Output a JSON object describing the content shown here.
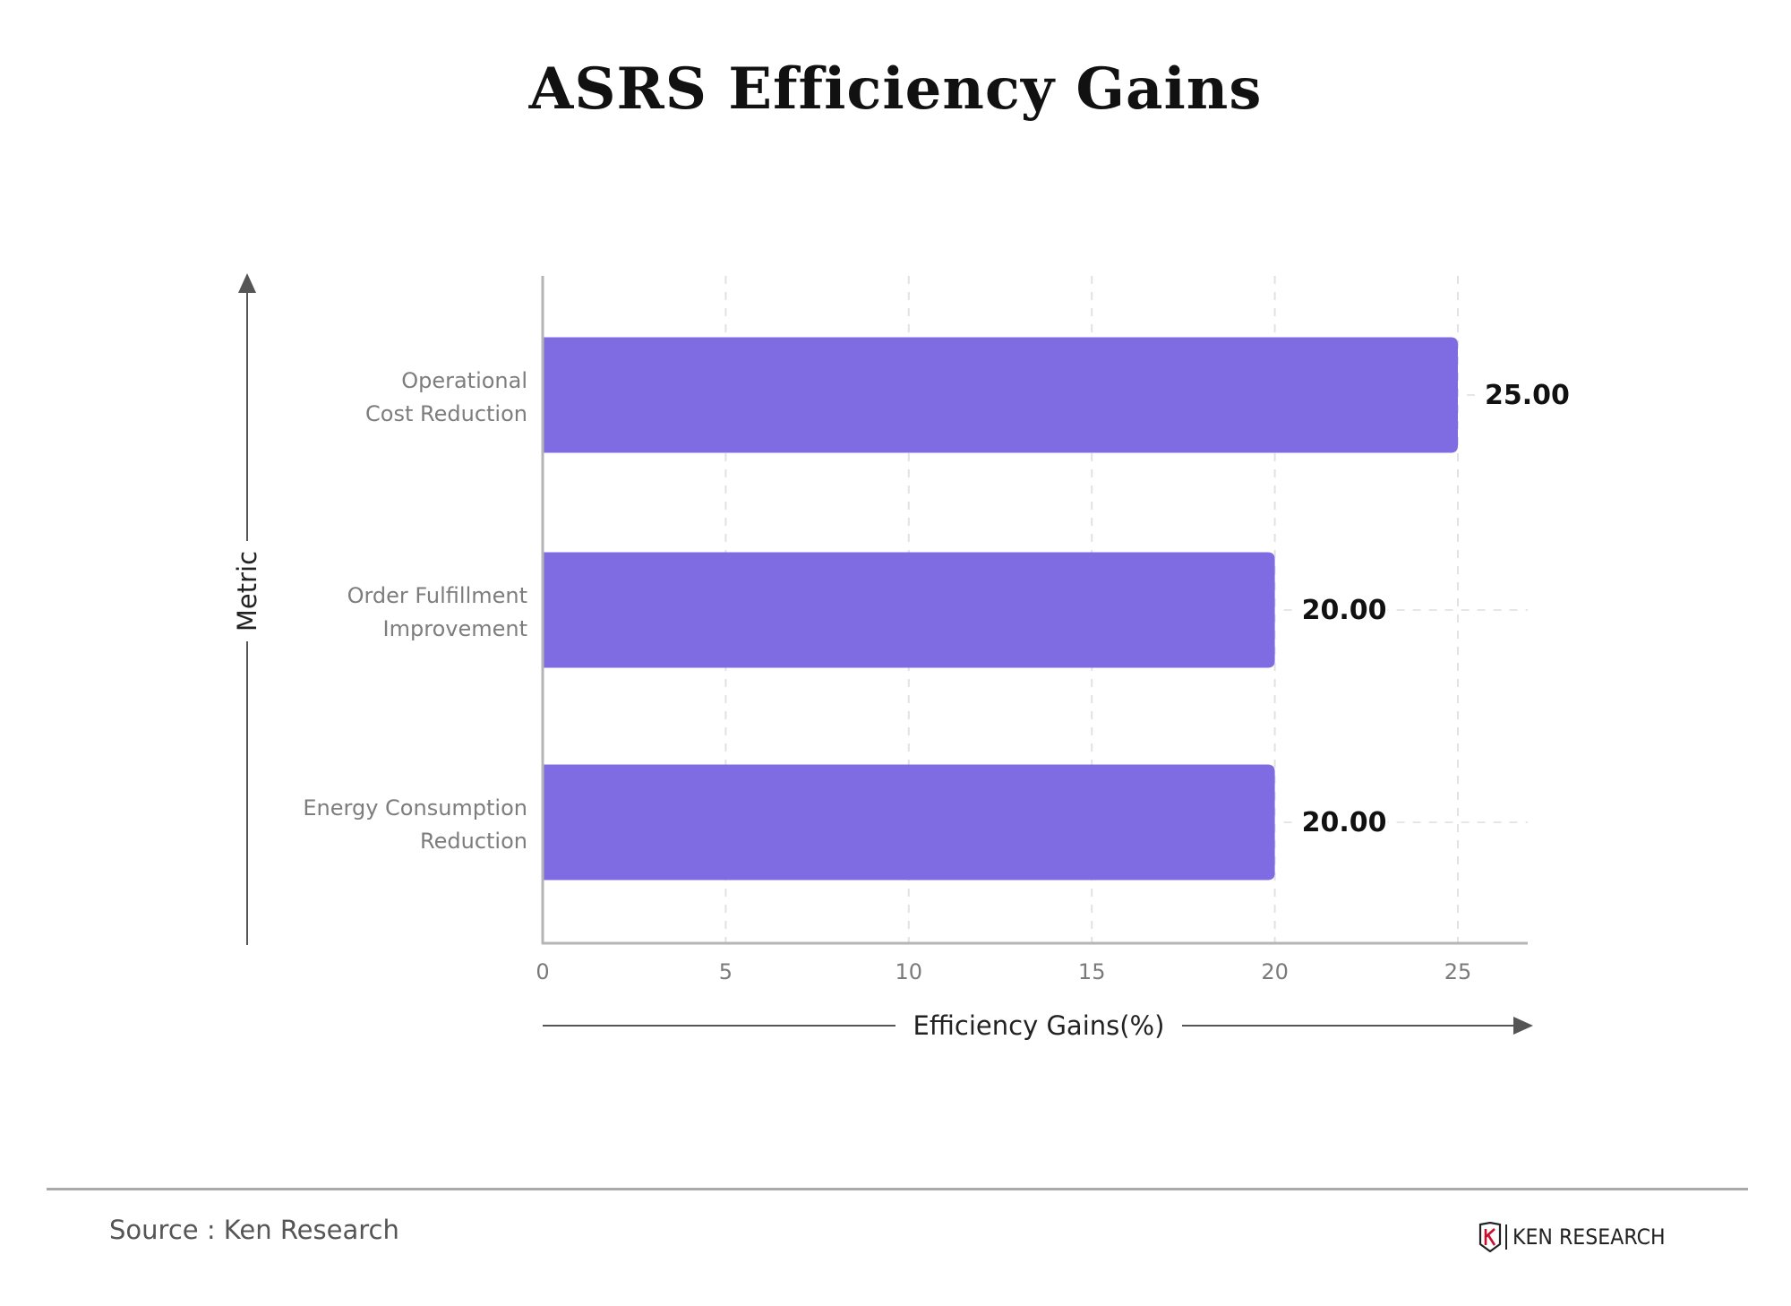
{
  "chart_data": {
    "type": "bar",
    "orientation": "horizontal",
    "title": "ASRS Efficiency Gains",
    "xlabel": "Efficiency Gains(%)",
    "ylabel": "Metric",
    "categories": [
      [
        "Operational",
        "Cost Reduction"
      ],
      [
        "Order Fulfillment",
        "Improvement"
      ],
      [
        "Energy Consumption",
        "Reduction"
      ]
    ],
    "values": [
      25,
      20,
      20
    ],
    "data_labels": [
      "25.00",
      "20.00",
      "20.00"
    ],
    "xticks": [
      "0",
      "5",
      "10",
      "15",
      "20",
      "25"
    ],
    "xtick_values": [
      0,
      5,
      10,
      15,
      20,
      25
    ],
    "xlim": [
      0,
      27
    ],
    "grid": "vertical dashed",
    "bar_color": "#806ce2"
  },
  "footer": {
    "source": "Source : Ken Research",
    "logo_text": "KEN RESEARCH"
  }
}
